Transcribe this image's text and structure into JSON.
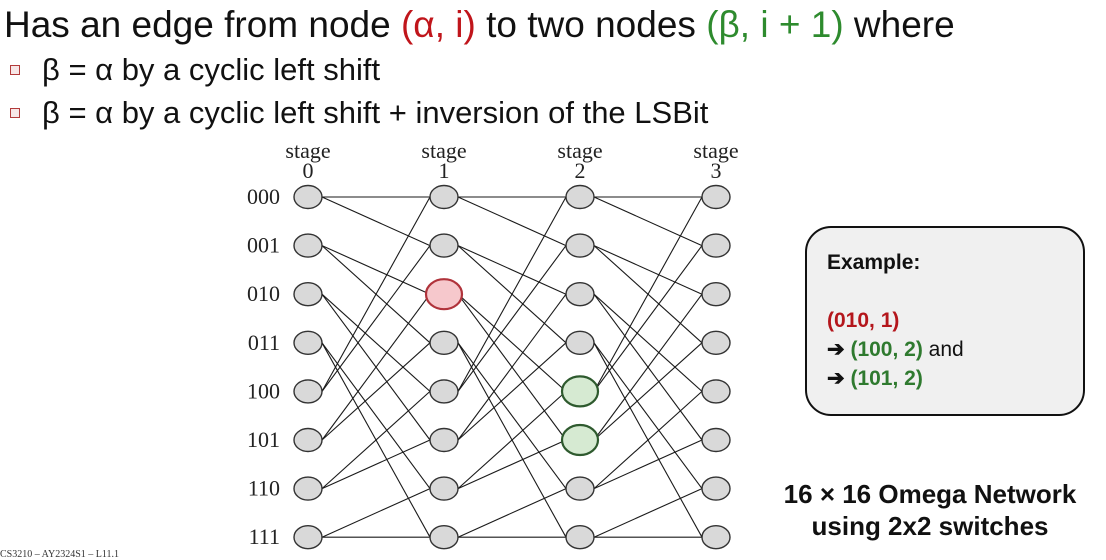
{
  "heading": {
    "prefix": "Has an edge from node ",
    "from_node": "(α, i)",
    "middle": " to two nodes ",
    "to_node": "(β, i + 1)",
    "suffix": " where"
  },
  "bullets": [
    "β = α by a cyclic left shift",
    "β = α by a cyclic left shift + inversion of the LSBit"
  ],
  "network": {
    "stages": [
      {
        "word": "stage",
        "num": "0"
      },
      {
        "word": "stage",
        "num": "1"
      },
      {
        "word": "stage",
        "num": "2"
      },
      {
        "word": "stage",
        "num": "3"
      }
    ],
    "row_labels": [
      "000",
      "001",
      "010",
      "011",
      "100",
      "101",
      "110",
      "111"
    ],
    "highlight_source": {
      "stage": 1,
      "row": 2,
      "fill": "#f6c8cc",
      "stroke": "#b0333b"
    },
    "highlight_targets": [
      {
        "stage": 2,
        "row": 4
      },
      {
        "stage": 2,
        "row": 5
      }
    ],
    "highlight_target_fill": "#d6ead2",
    "highlight_target_stroke": "#2e5a2e",
    "node_fill": "#d9d9d9",
    "node_stroke": "#333333"
  },
  "example": {
    "title": "Example:",
    "source": "(010, 1)",
    "arrow": "➔",
    "target1": "(100, 2)",
    "and_word": " and",
    "target2": "(101, 2)"
  },
  "caption": {
    "line1": "16 × 16 Omega Network",
    "line2": "using 2x2 switches"
  },
  "footer": {
    "text": "CS3210 – AY2324S1 – L11.1"
  }
}
